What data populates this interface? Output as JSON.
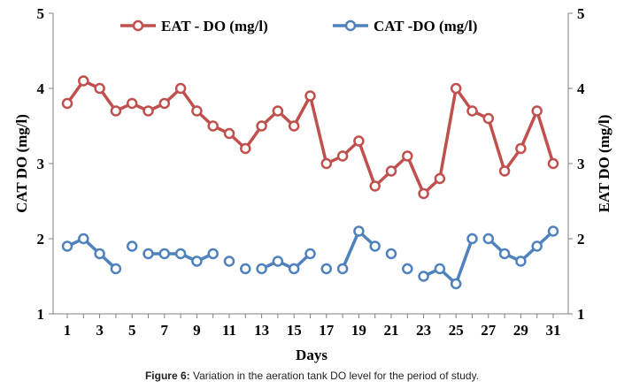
{
  "chart_data": {
    "type": "line",
    "title": "",
    "xlabel": "Days",
    "ylabel_left": "CAT DO (mg/l)",
    "ylabel_right": "EAT DO (mg/l)",
    "ylim": [
      1,
      5
    ],
    "yticks": [
      "1",
      "2",
      "3",
      "4",
      "5"
    ],
    "x": [
      1,
      2,
      3,
      4,
      5,
      6,
      7,
      8,
      9,
      10,
      11,
      12,
      13,
      14,
      15,
      16,
      17,
      18,
      19,
      20,
      21,
      22,
      23,
      24,
      25,
      26,
      27,
      28,
      29,
      30,
      31
    ],
    "xtick_labels": [
      "1",
      "3",
      "5",
      "7",
      "9",
      "11",
      "13",
      "15",
      "17",
      "19",
      "21",
      "23",
      "25",
      "27",
      "29",
      "31"
    ],
    "legend_position": "top",
    "series": [
      {
        "name": "EAT - DO (mg/l)",
        "color": "#c0504d",
        "values": [
          3.8,
          4.1,
          4.0,
          3.7,
          3.8,
          3.7,
          3.8,
          4.0,
          3.7,
          3.5,
          3.4,
          3.2,
          3.5,
          3.7,
          3.5,
          3.9,
          3.0,
          3.1,
          3.3,
          2.7,
          2.9,
          3.1,
          2.6,
          2.8,
          4.0,
          3.7,
          3.6,
          2.9,
          3.2,
          3.7,
          3.0
        ]
      },
      {
        "name": "CAT -DO (mg/l)",
        "color": "#4f81bd",
        "values": [
          1.9,
          2.0,
          1.8,
          1.6,
          1.9,
          1.8,
          1.8,
          1.8,
          1.7,
          1.8,
          1.7,
          1.6,
          1.6,
          1.7,
          1.6,
          1.8,
          1.6,
          1.6,
          2.1,
          1.9,
          1.8,
          1.6,
          1.5,
          1.6,
          1.4,
          2.0,
          2.0,
          1.8,
          1.7,
          1.9,
          2.1
        ],
        "connected_segments": [
          [
            1,
            2
          ],
          [
            2,
            3
          ],
          [
            3,
            4
          ],
          [
            6,
            7
          ],
          [
            7,
            8
          ],
          [
            8,
            9
          ],
          [
            9,
            10
          ],
          [
            13,
            14
          ],
          [
            14,
            15
          ],
          [
            15,
            16
          ],
          [
            18,
            19
          ],
          [
            19,
            20
          ],
          [
            23,
            24
          ],
          [
            24,
            25
          ],
          [
            25,
            26
          ],
          [
            27,
            28
          ],
          [
            28,
            29
          ],
          [
            29,
            30
          ],
          [
            30,
            31
          ]
        ]
      }
    ]
  },
  "caption": {
    "label": "Figure 6:",
    "text": " Variation in the aeration tank DO level for the period of study."
  }
}
